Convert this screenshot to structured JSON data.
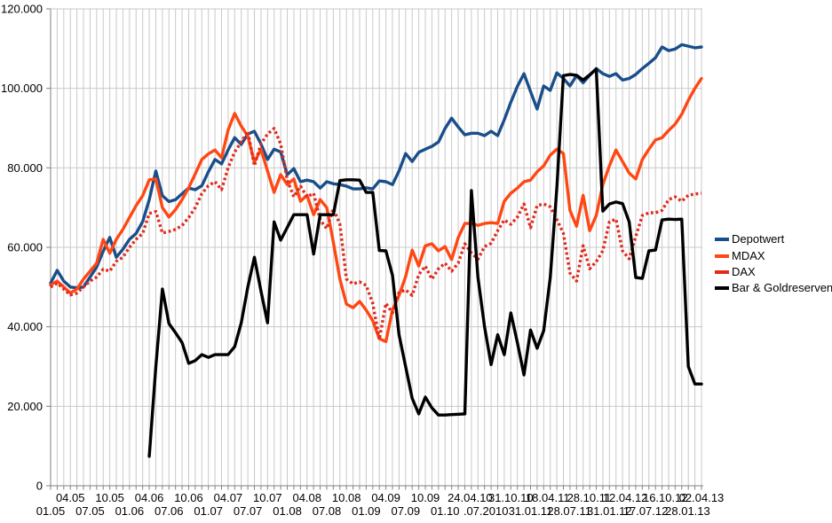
{
  "chart_data": {
    "type": "line",
    "title": "",
    "grid": true,
    "legend_position": "right-middle",
    "y_axis": {
      "min": 0,
      "max": 120000,
      "tick_step": 20000,
      "tick_labels": [
        "120.000",
        "100.000",
        "80.000",
        "60.000",
        "40.000",
        "20.000",
        "0"
      ],
      "tick_values": [
        120000,
        100000,
        80000,
        60000,
        40000,
        20000,
        0
      ]
    },
    "x_axis": {
      "unit": "month (MM.YY), monthly gridlines Jan 2005 - Apr 2013",
      "row1_labels": [
        {
          "text": "04.05",
          "m": 3
        },
        {
          "text": "10.05",
          "m": 9
        },
        {
          "text": "04.06",
          "m": 15
        },
        {
          "text": "10.06",
          "m": 21
        },
        {
          "text": "04.07",
          "m": 27
        },
        {
          "text": "10.07",
          "m": 33
        },
        {
          "text": "04.08",
          "m": 39
        },
        {
          "text": "10.08",
          "m": 45
        },
        {
          "text": "04.09",
          "m": 51
        },
        {
          "text": "10.09",
          "m": 57
        },
        {
          "text": "24.04.10",
          "m": 63.8
        },
        {
          "text": "31.10.10",
          "m": 70
        },
        {
          "text": "18.04.11",
          "m": 75.6
        },
        {
          "text": "28.10.11",
          "m": 81.9
        },
        {
          "text": "12.04.12",
          "m": 87.4
        },
        {
          "text": "16.10.12",
          "m": 93.5
        },
        {
          "text": "02.04.13",
          "m": 99
        }
      ],
      "row2_labels": [
        {
          "text": "01.05",
          "m": 0
        },
        {
          "text": "07.05",
          "m": 6
        },
        {
          "text": "01.06",
          "m": 12
        },
        {
          "text": "07.06",
          "m": 18
        },
        {
          "text": "01.07",
          "m": 24
        },
        {
          "text": "07.07",
          "m": 30
        },
        {
          "text": "01.08",
          "m": 36
        },
        {
          "text": "07.08",
          "m": 42
        },
        {
          "text": "01.09",
          "m": 48
        },
        {
          "text": "07.09",
          "m": 54
        },
        {
          "text": "01.10",
          "m": 60
        },
        {
          "text": ".07.2010",
          "m": 66.2
        },
        {
          "text": "31.01.11",
          "m": 73
        },
        {
          "text": "28.07.11",
          "m": 78.9
        },
        {
          "text": "31.01.12",
          "m": 85
        },
        {
          "text": "17.07.12",
          "m": 90.5
        },
        {
          "text": "28.01.13",
          "m": 96.9
        }
      ]
    },
    "series": [
      {
        "name": "Depotwert",
        "color": "#1A4E8A",
        "style": "solid",
        "start_month": 0,
        "values": [
          51000,
          54200,
          51500,
          50000,
          49800,
          50000,
          52500,
          55000,
          59000,
          62500,
          57500,
          59500,
          62000,
          63500,
          66500,
          72000,
          79200,
          73000,
          71500,
          72000,
          73500,
          74900,
          74500,
          75500,
          79000,
          82100,
          81000,
          84500,
          87600,
          85900,
          88500,
          89200,
          86000,
          82100,
          84700,
          84000,
          78300,
          79800,
          76500,
          76900,
          76500,
          74900,
          76500,
          76000,
          75800,
          75400,
          74700,
          74700,
          75000,
          74700,
          76700,
          76500,
          75800,
          79200,
          83600,
          81600,
          83900,
          84700,
          85400,
          86500,
          89900,
          92500,
          90300,
          88300,
          88700,
          88700,
          88100,
          89200,
          88100,
          92100,
          96500,
          100500,
          103700,
          99200,
          94800,
          100600,
          99500,
          103900,
          102500,
          100600,
          103200,
          101400,
          103300,
          105000,
          103700,
          103000,
          103700,
          102100,
          102500,
          103500,
          105000,
          106300,
          107700,
          110400,
          109500,
          109900,
          111000,
          110600,
          110200,
          110400
        ]
      },
      {
        "name": "MDAX",
        "color": "#FF4713",
        "style": "solid",
        "start_month": 0,
        "values": [
          50500,
          51500,
          50000,
          48500,
          49500,
          52000,
          54000,
          56000,
          62000,
          58500,
          62000,
          64500,
          67500,
          70500,
          73000,
          77000,
          77200,
          70000,
          67600,
          69500,
          72000,
          75000,
          78500,
          82100,
          83500,
          84500,
          82500,
          89500,
          93700,
          90500,
          88000,
          81400,
          84700,
          79200,
          73800,
          78300,
          75800,
          77200,
          71600,
          73100,
          68200,
          72000,
          70000,
          61300,
          52000,
          45700,
          44800,
          46400,
          44200,
          41500,
          37000,
          36300,
          44200,
          47900,
          52600,
          59300,
          55300,
          60400,
          60900,
          59100,
          60200,
          56900,
          62400,
          66000,
          66000,
          65500,
          66000,
          66200,
          66000,
          71600,
          73600,
          74900,
          76500,
          76900,
          79000,
          80500,
          83200,
          84700,
          83600,
          69300,
          65300,
          73100,
          64200,
          68000,
          75800,
          80500,
          84500,
          81600,
          78700,
          77200,
          82100,
          84700,
          87000,
          87600,
          89400,
          91000,
          93500,
          97000,
          100000,
          102500
        ]
      },
      {
        "name": "DAX",
        "color": "#E02A1D",
        "style": "dotted",
        "start_month": 0,
        "values": [
          50000,
          51000,
          49500,
          48000,
          48500,
          50000,
          51500,
          52500,
          54500,
          54000,
          56500,
          57500,
          60000,
          62000,
          63500,
          68500,
          69000,
          63600,
          64000,
          64500,
          65500,
          67500,
          70000,
          73500,
          75500,
          76500,
          74500,
          80000,
          84000,
          86500,
          89200,
          80500,
          86000,
          88500,
          89900,
          86000,
          76900,
          72700,
          75400,
          72700,
          73600,
          66900,
          64700,
          69800,
          65800,
          52000,
          50800,
          51300,
          50400,
          45900,
          36800,
          45900,
          43500,
          48600,
          49300,
          47900,
          53100,
          55300,
          52000,
          54600,
          56000,
          54000,
          56000,
          60900,
          58600,
          57000,
          60200,
          61000,
          64200,
          66900,
          65800,
          67600,
          70900,
          64900,
          70500,
          70900,
          70200,
          67000,
          63500,
          53500,
          51500,
          60400,
          54600,
          56400,
          59100,
          66400,
          67100,
          59100,
          57100,
          62700,
          68000,
          68700,
          68700,
          69300,
          72000,
          72700,
          71600,
          73100,
          73400,
          73600
        ]
      },
      {
        "name": "Bar & Goldreserven",
        "color": "#000000",
        "style": "solid",
        "start_month": 15,
        "values": [
          7400,
          30000,
          49500,
          40800,
          38500,
          36000,
          30800,
          31500,
          33000,
          32300,
          33000,
          33000,
          33000,
          35000,
          41000,
          50000,
          57500,
          49000,
          41000,
          66400,
          61800,
          65000,
          68200,
          68200,
          68200,
          58300,
          68200,
          68200,
          68200,
          76800,
          77000,
          77000,
          76900,
          73800,
          73800,
          59200,
          59100,
          53000,
          38000,
          30000,
          22000,
          18100,
          22300,
          19600,
          17800,
          17800,
          17900,
          18000,
          18100,
          74300,
          52400,
          40000,
          30500,
          38000,
          33000,
          43500,
          36000,
          27900,
          39200,
          34600,
          39000,
          52400,
          74900,
          103200,
          103500,
          103300,
          102100,
          103400,
          104800,
          69100,
          70900,
          71400,
          71000,
          66400,
          52400,
          52200,
          59100,
          59300,
          66900,
          67100,
          67000,
          67100,
          30000,
          25600,
          25600
        ]
      }
    ],
    "legend": [
      "Depotwert",
      "MDAX",
      "DAX",
      "Bar & Goldreserven"
    ],
    "colors": {
      "grid": "#c9c9c9",
      "axis": "#828282",
      "depotwert": "#1A4E8A",
      "mdax": "#FF4713",
      "dax": "#E02A1D",
      "bar_gold": "#000000"
    }
  }
}
